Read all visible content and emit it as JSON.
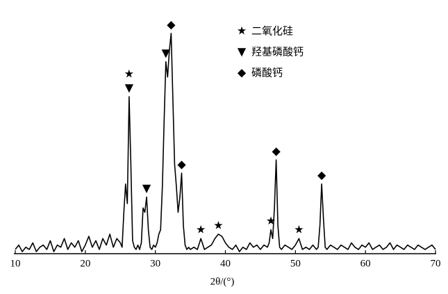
{
  "chart_data": {
    "type": "line",
    "xlabel": "2θ/(°)",
    "xlim": [
      10,
      70
    ],
    "xticks": [
      10,
      20,
      30,
      40,
      50,
      60,
      70
    ],
    "ylim": [
      0,
      100
    ],
    "series": [
      {
        "color": "#000000",
        "x": [
          10,
          10.5,
          11,
          11.5,
          12,
          12.5,
          13,
          13.5,
          14,
          14.5,
          15,
          15.5,
          16,
          16.5,
          17,
          17.5,
          18,
          18.5,
          19,
          19.5,
          20,
          20.5,
          21,
          21.5,
          22,
          22.5,
          23,
          23.5,
          24,
          24.5,
          25,
          25.25,
          25.5,
          25.75,
          26,
          26.25,
          26.5,
          26.75,
          27,
          27.25,
          27.5,
          27.75,
          28,
          28.25,
          28.5,
          28.75,
          29,
          29.25,
          29.5,
          29.75,
          30,
          30.25,
          30.5,
          30.75,
          31,
          31.25,
          31.5,
          31.75,
          32,
          32.25,
          32.5,
          32.75,
          33,
          33.25,
          33.5,
          33.75,
          34,
          34.25,
          34.5,
          34.75,
          35,
          35.5,
          36,
          36.5,
          37,
          37.5,
          38,
          38.5,
          39,
          39.5,
          40,
          40.5,
          41,
          41.5,
          42,
          42.5,
          43,
          43.5,
          44,
          44.5,
          45,
          45.5,
          46,
          46.25,
          46.5,
          46.75,
          47,
          47.25,
          47.5,
          47.75,
          48,
          48.5,
          49,
          49.5,
          50,
          50.5,
          51,
          51.5,
          52,
          52.5,
          53,
          53.25,
          53.5,
          53.75,
          54,
          54.25,
          54.5,
          54.75,
          55,
          55.5,
          56,
          56.5,
          57,
          57.5,
          58,
          58.5,
          59,
          59.5,
          60,
          60.5,
          61,
          61.5,
          62,
          62.5,
          63,
          63.5,
          64,
          64.5,
          65,
          65.5,
          66,
          66.5,
          67,
          67.5,
          68,
          68.5,
          69,
          69.5,
          70
        ],
        "values": [
          1,
          3,
          0,
          2,
          1,
          4,
          0,
          2,
          3,
          1,
          5,
          0,
          3,
          2,
          6,
          1,
          4,
          2,
          5,
          0,
          3,
          7,
          2,
          5,
          1,
          6,
          3,
          8,
          2,
          6,
          4,
          2,
          18,
          31,
          22,
          71,
          40,
          5,
          2,
          1,
          3,
          1,
          4,
          20,
          18,
          25,
          10,
          2,
          1,
          3,
          2,
          4,
          8,
          10,
          30,
          60,
          87,
          80,
          92,
          100,
          70,
          40,
          30,
          18,
          25,
          36,
          12,
          3,
          1,
          2,
          1,
          2,
          1,
          6,
          1,
          2,
          3,
          6,
          8,
          7,
          4,
          2,
          1,
          3,
          0,
          2,
          1,
          4,
          2,
          3,
          1,
          3,
          2,
          4,
          10,
          6,
          20,
          42,
          12,
          2,
          1,
          3,
          2,
          1,
          3,
          6,
          1,
          2,
          1,
          3,
          1,
          2,
          12,
          31,
          15,
          2,
          1,
          2,
          3,
          2,
          1,
          3,
          2,
          1,
          4,
          2,
          1,
          3,
          2,
          4,
          1,
          2,
          3,
          1,
          2,
          4,
          1,
          3,
          2,
          1,
          3,
          2,
          1,
          3,
          2,
          1,
          2,
          3,
          1
        ]
      }
    ],
    "annotations": [
      {
        "text": "★",
        "x": 26.25
      },
      {
        "text": "▼",
        "x": 26.25
      },
      {
        "text": "▼",
        "x": 28.75
      },
      {
        "text": "▼",
        "x": 31.5
      },
      {
        "text": "◆",
        "x": 32.25
      },
      {
        "text": "◆",
        "x": 33.75
      },
      {
        "text": "★",
        "x": 36.5
      },
      {
        "text": "★",
        "x": 39
      },
      {
        "text": "★",
        "x": 46.5
      },
      {
        "text": "◆",
        "x": 47.25
      },
      {
        "text": "★",
        "x": 50.5
      },
      {
        "text": "◆",
        "x": 53.75
      }
    ],
    "legend": [
      {
        "symbol": "★",
        "label": "二氧化硅"
      },
      {
        "symbol": "▼",
        "label": "羟基磷酸钙"
      },
      {
        "symbol": "◆",
        "label": "磷酸钙"
      }
    ]
  }
}
